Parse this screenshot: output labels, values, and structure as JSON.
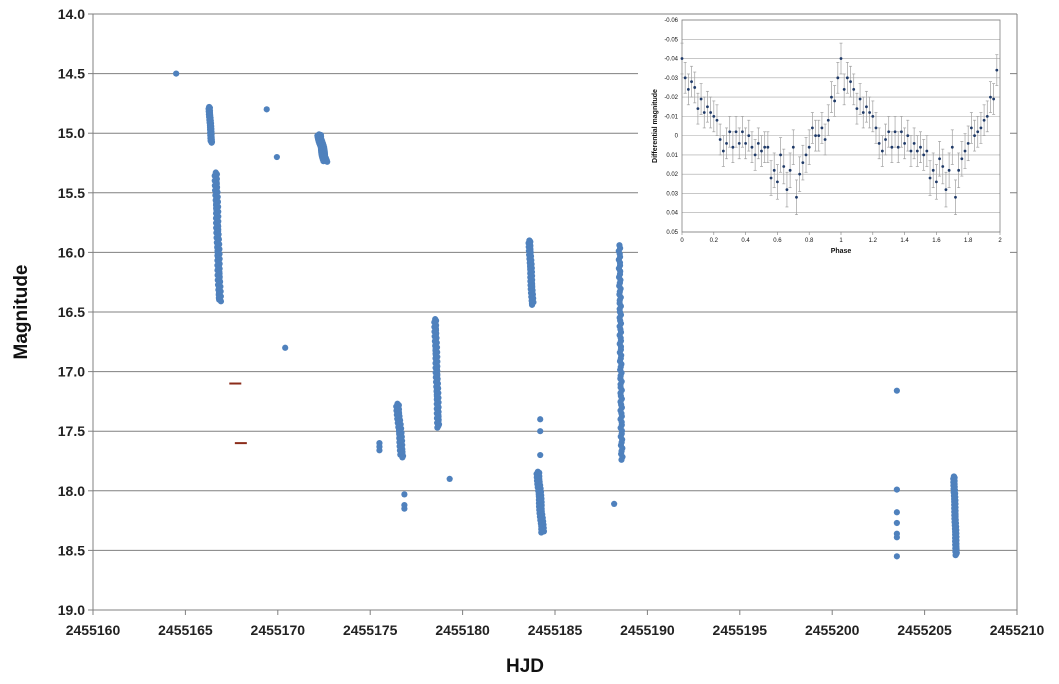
{
  "chart_data": [
    {
      "type": "scatter",
      "title": "",
      "xlabel": "HJD",
      "ylabel": "Magnitude",
      "xlim": [
        2455160,
        2455210
      ],
      "ylim": [
        14.0,
        19.0
      ],
      "y_inverted": true,
      "grid": "horizontal",
      "x_ticks": [
        "2455160",
        "2455165",
        "2455170",
        "2455175",
        "2455180",
        "2455185",
        "2455190",
        "2455195",
        "2455200",
        "2455205",
        "2455210"
      ],
      "y_ticks": [
        "14.0",
        "14.5",
        "15.0",
        "15.5",
        "16.0",
        "16.5",
        "17.0",
        "17.5",
        "18.0",
        "18.5",
        "19.0"
      ],
      "marker_color": "#4f81bd",
      "limit_marker_color": "#8b2c1a",
      "series": [
        {
          "points": [
            {
              "x": 2455164.5,
              "y": 14.5
            },
            {
              "x": 2455169.4,
              "y": 14.8
            },
            {
              "x": 2455169.95,
              "y": 15.2
            },
            {
              "x": 2455170.4,
              "y": 16.8
            },
            {
              "x": 2455179.3,
              "y": 17.9
            },
            {
              "x": 2455176.85,
              "y": 18.03
            },
            {
              "x": 2455176.85,
              "y": 18.12
            },
            {
              "x": 2455176.85,
              "y": 18.15
            },
            {
              "x": 2455175.5,
              "y": 17.6
            },
            {
              "x": 2455175.5,
              "y": 17.63
            },
            {
              "x": 2455175.5,
              "y": 17.66
            },
            {
              "x": 2455184.2,
              "y": 17.4
            },
            {
              "x": 2455184.2,
              "y": 17.5
            },
            {
              "x": 2455184.2,
              "y": 17.7
            },
            {
              "x": 2455188.2,
              "y": 18.11
            },
            {
              "x": 2455203.5,
              "y": 17.16
            },
            {
              "x": 2455203.5,
              "y": 17.99
            },
            {
              "x": 2455203.5,
              "y": 18.18
            },
            {
              "x": 2455203.5,
              "y": 18.27
            },
            {
              "x": 2455203.5,
              "y": 18.36
            },
            {
              "x": 2455203.5,
              "y": 18.39
            },
            {
              "x": 2455203.5,
              "y": 18.55
            }
          ],
          "clusters": [
            {
              "x_from": 2455166.2,
              "x_to": 2455166.5,
              "y_from": 14.78,
              "y_to": 15.08,
              "n": 40
            },
            {
              "x_from": 2455166.5,
              "x_to": 2455167.0,
              "y_from": 15.33,
              "y_to": 16.41,
              "n": 80
            },
            {
              "x_from": 2455172.0,
              "x_to": 2455172.8,
              "y_from": 15.01,
              "y_to": 15.24,
              "n": 45
            },
            {
              "x_from": 2455176.3,
              "x_to": 2455176.9,
              "y_from": 17.27,
              "y_to": 17.72,
              "n": 40
            },
            {
              "x_from": 2455178.4,
              "x_to": 2455178.8,
              "y_from": 16.56,
              "y_to": 17.47,
              "n": 70
            },
            {
              "x_from": 2455183.5,
              "x_to": 2455183.9,
              "y_from": 15.9,
              "y_to": 16.44,
              "n": 50
            },
            {
              "x_from": 2455183.9,
              "x_to": 2455184.5,
              "y_from": 17.84,
              "y_to": 18.35,
              "n": 55
            },
            {
              "x_from": 2455188.4,
              "x_to": 2455188.7,
              "y_from": 15.94,
              "y_to": 17.74,
              "n": 75
            },
            {
              "x_from": 2455206.5,
              "x_to": 2455206.8,
              "y_from": 17.88,
              "y_to": 18.54,
              "n": 70
            }
          ]
        }
      ],
      "upper_limits": [
        {
          "x": 2455167.7,
          "y": 17.1
        },
        {
          "x": 2455168.0,
          "y": 17.6
        }
      ]
    },
    {
      "type": "scatter",
      "title": "",
      "xlabel": "Phase",
      "ylabel": "Differential magnitude",
      "xlim": [
        0,
        2
      ],
      "ylim": [
        -0.06,
        0.05
      ],
      "y_inverted": true,
      "grid": "horizontal",
      "error_bars": true,
      "x_ticks": [
        "0",
        "0.2",
        "0.4",
        "0.6",
        "0.8",
        "1",
        "1.2",
        "1.4",
        "1.6",
        "1.8",
        "2"
      ],
      "y_ticks": [
        "-0.06",
        "-0.05",
        "-0.04",
        "-0.03",
        "-0.02",
        "-0.01",
        "0",
        "0.01",
        "0.02",
        "0.03",
        "0.04",
        "0.05"
      ],
      "marker_color": "#1f3a68",
      "error_color": "#a0a0a0",
      "series": [
        {
          "points": [
            {
              "x": 0.0,
              "y": -0.04,
              "err": 0.008
            },
            {
              "x": 0.02,
              "y": -0.03,
              "err": 0.008
            },
            {
              "x": 0.04,
              "y": -0.024,
              "err": 0.008
            },
            {
              "x": 0.06,
              "y": -0.028,
              "err": 0.008
            },
            {
              "x": 0.08,
              "y": -0.025,
              "err": 0.008
            },
            {
              "x": 0.1,
              "y": -0.014,
              "err": 0.008
            },
            {
              "x": 0.12,
              "y": -0.019,
              "err": 0.008
            },
            {
              "x": 0.14,
              "y": -0.012,
              "err": 0.008
            },
            {
              "x": 0.16,
              "y": -0.015,
              "err": 0.008
            },
            {
              "x": 0.18,
              "y": -0.012,
              "err": 0.008
            },
            {
              "x": 0.2,
              "y": -0.01,
              "err": 0.008
            },
            {
              "x": 0.22,
              "y": -0.008,
              "err": 0.008
            },
            {
              "x": 0.24,
              "y": 0.002,
              "err": 0.008
            },
            {
              "x": 0.26,
              "y": 0.008,
              "err": 0.008
            },
            {
              "x": 0.28,
              "y": 0.004,
              "err": 0.008
            },
            {
              "x": 0.3,
              "y": -0.002,
              "err": 0.008
            },
            {
              "x": 0.32,
              "y": 0.006,
              "err": 0.008
            },
            {
              "x": 0.34,
              "y": -0.002,
              "err": 0.008
            },
            {
              "x": 0.36,
              "y": 0.004,
              "err": 0.008
            },
            {
              "x": 0.38,
              "y": -0.002,
              "err": 0.008
            },
            {
              "x": 0.4,
              "y": 0.004,
              "err": 0.008
            },
            {
              "x": 0.42,
              "y": 0.0,
              "err": 0.008
            },
            {
              "x": 0.44,
              "y": 0.006,
              "err": 0.008
            },
            {
              "x": 0.46,
              "y": 0.01,
              "err": 0.008
            },
            {
              "x": 0.48,
              "y": 0.004,
              "err": 0.008
            },
            {
              "x": 0.5,
              "y": 0.008,
              "err": 0.008
            },
            {
              "x": 0.52,
              "y": 0.006,
              "err": 0.008
            },
            {
              "x": 0.54,
              "y": 0.006,
              "err": 0.008
            },
            {
              "x": 0.56,
              "y": 0.022,
              "err": 0.009
            },
            {
              "x": 0.58,
              "y": 0.018,
              "err": 0.009
            },
            {
              "x": 0.6,
              "y": 0.024,
              "err": 0.009
            },
            {
              "x": 0.62,
              "y": 0.01,
              "err": 0.009
            },
            {
              "x": 0.64,
              "y": 0.016,
              "err": 0.009
            },
            {
              "x": 0.66,
              "y": 0.028,
              "err": 0.009
            },
            {
              "x": 0.68,
              "y": 0.018,
              "err": 0.009
            },
            {
              "x": 0.7,
              "y": 0.006,
              "err": 0.009
            },
            {
              "x": 0.72,
              "y": 0.032,
              "err": 0.009
            },
            {
              "x": 0.74,
              "y": 0.02,
              "err": 0.009
            },
            {
              "x": 0.76,
              "y": 0.014,
              "err": 0.009
            },
            {
              "x": 0.78,
              "y": 0.01,
              "err": 0.009
            },
            {
              "x": 0.8,
              "y": 0.006,
              "err": 0.009
            },
            {
              "x": 0.82,
              "y": -0.004,
              "err": 0.008
            },
            {
              "x": 0.84,
              "y": 0.0,
              "err": 0.008
            },
            {
              "x": 0.86,
              "y": 0.0,
              "err": 0.008
            },
            {
              "x": 0.88,
              "y": -0.004,
              "err": 0.008
            },
            {
              "x": 0.9,
              "y": 0.002,
              "err": 0.008
            },
            {
              "x": 0.92,
              "y": -0.008,
              "err": 0.008
            },
            {
              "x": 0.94,
              "y": -0.02,
              "err": 0.008
            },
            {
              "x": 0.96,
              "y": -0.018,
              "err": 0.008
            },
            {
              "x": 0.98,
              "y": -0.03,
              "err": 0.008
            },
            {
              "x": 1.0,
              "y": -0.04,
              "err": 0.008
            },
            {
              "x": 1.02,
              "y": -0.024,
              "err": 0.008
            },
            {
              "x": 1.04,
              "y": -0.03,
              "err": 0.008
            },
            {
              "x": 1.06,
              "y": -0.028,
              "err": 0.008
            },
            {
              "x": 1.08,
              "y": -0.024,
              "err": 0.008
            },
            {
              "x": 1.1,
              "y": -0.014,
              "err": 0.008
            },
            {
              "x": 1.12,
              "y": -0.019,
              "err": 0.008
            },
            {
              "x": 1.14,
              "y": -0.012,
              "err": 0.008
            },
            {
              "x": 1.16,
              "y": -0.015,
              "err": 0.008
            },
            {
              "x": 1.18,
              "y": -0.012,
              "err": 0.008
            },
            {
              "x": 1.2,
              "y": -0.01,
              "err": 0.008
            },
            {
              "x": 1.22,
              "y": -0.004,
              "err": 0.008
            },
            {
              "x": 1.24,
              "y": 0.004,
              "err": 0.008
            },
            {
              "x": 1.26,
              "y": 0.008,
              "err": 0.008
            },
            {
              "x": 1.28,
              "y": 0.002,
              "err": 0.008
            },
            {
              "x": 1.3,
              "y": -0.002,
              "err": 0.008
            },
            {
              "x": 1.32,
              "y": 0.006,
              "err": 0.008
            },
            {
              "x": 1.34,
              "y": -0.002,
              "err": 0.008
            },
            {
              "x": 1.36,
              "y": 0.006,
              "err": 0.008
            },
            {
              "x": 1.38,
              "y": -0.002,
              "err": 0.008
            },
            {
              "x": 1.4,
              "y": 0.004,
              "err": 0.008
            },
            {
              "x": 1.42,
              "y": 0.0,
              "err": 0.008
            },
            {
              "x": 1.44,
              "y": 0.008,
              "err": 0.008
            },
            {
              "x": 1.46,
              "y": 0.004,
              "err": 0.008
            },
            {
              "x": 1.48,
              "y": 0.008,
              "err": 0.008
            },
            {
              "x": 1.5,
              "y": 0.006,
              "err": 0.008
            },
            {
              "x": 1.52,
              "y": 0.01,
              "err": 0.008
            },
            {
              "x": 1.54,
              "y": 0.008,
              "err": 0.008
            },
            {
              "x": 1.56,
              "y": 0.022,
              "err": 0.009
            },
            {
              "x": 1.58,
              "y": 0.018,
              "err": 0.009
            },
            {
              "x": 1.6,
              "y": 0.024,
              "err": 0.009
            },
            {
              "x": 1.62,
              "y": 0.012,
              "err": 0.009
            },
            {
              "x": 1.64,
              "y": 0.016,
              "err": 0.009
            },
            {
              "x": 1.66,
              "y": 0.028,
              "err": 0.009
            },
            {
              "x": 1.68,
              "y": 0.018,
              "err": 0.009
            },
            {
              "x": 1.7,
              "y": 0.006,
              "err": 0.009
            },
            {
              "x": 1.72,
              "y": 0.032,
              "err": 0.009
            },
            {
              "x": 1.74,
              "y": 0.018,
              "err": 0.009
            },
            {
              "x": 1.76,
              "y": 0.012,
              "err": 0.009
            },
            {
              "x": 1.78,
              "y": 0.008,
              "err": 0.009
            },
            {
              "x": 1.8,
              "y": 0.004,
              "err": 0.009
            },
            {
              "x": 1.82,
              "y": -0.004,
              "err": 0.008
            },
            {
              "x": 1.84,
              "y": 0.0,
              "err": 0.008
            },
            {
              "x": 1.86,
              "y": -0.002,
              "err": 0.008
            },
            {
              "x": 1.88,
              "y": -0.004,
              "err": 0.008
            },
            {
              "x": 1.9,
              "y": -0.008,
              "err": 0.008
            },
            {
              "x": 1.92,
              "y": -0.01,
              "err": 0.008
            },
            {
              "x": 1.94,
              "y": -0.02,
              "err": 0.008
            },
            {
              "x": 1.96,
              "y": -0.019,
              "err": 0.008
            },
            {
              "x": 1.98,
              "y": -0.034,
              "err": 0.008
            }
          ]
        }
      ]
    }
  ]
}
